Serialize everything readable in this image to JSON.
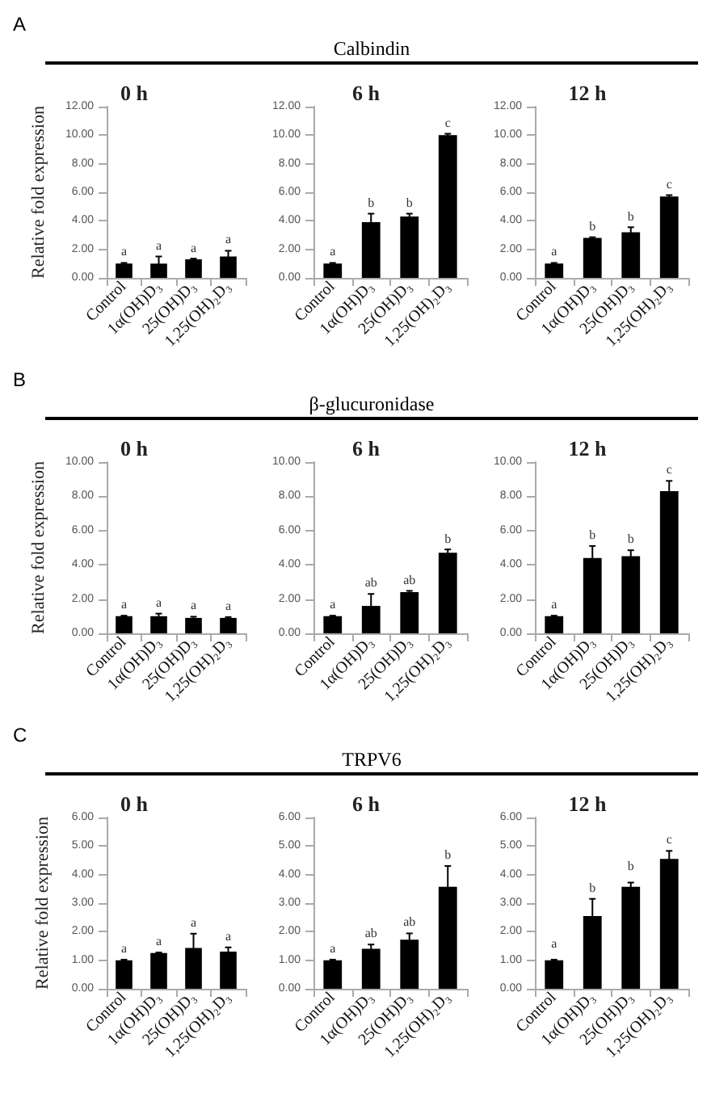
{
  "chart_data": [
    {
      "type": "bar",
      "title": "0 h",
      "ylabel": "Relative fold expression",
      "categories": [
        "Control",
        "1α(OH)D₃",
        "25(OH)D₃",
        "1,25(OH)₂D₃"
      ],
      "values": [
        1.0,
        1.0,
        1.3,
        1.5
      ],
      "errors": [
        0.05,
        0.5,
        0.05,
        0.4
      ],
      "color": "#000000",
      "ylim": [
        0,
        12
      ],
      "yticks": [
        {
          "value": 0,
          "label": "0.00"
        },
        {
          "value": 2,
          "label": "2.00"
        },
        {
          "value": 4,
          "label": "4.00"
        },
        {
          "value": 6,
          "label": "6.00"
        },
        {
          "value": 8,
          "label": "8.00"
        },
        {
          "value": 10,
          "label": "10.00"
        },
        {
          "value": 12,
          "label": "12.00"
        }
      ],
      "annotations": [
        "A",
        "Calbindin",
        {
          "text": "a",
          "x": "Control",
          "y": 1.05
        },
        {
          "text": "a",
          "x": "1α(OH)D₃",
          "y": 1.5
        },
        {
          "text": "a",
          "x": "25(OH)D₃",
          "y": 1.33
        },
        {
          "text": "a",
          "x": "1,25(OH)₂D₃",
          "y": 1.9
        }
      ]
    },
    {
      "type": "bar",
      "title": "6 h",
      "categories": [
        "Control",
        "1α(OH)D₃",
        "25(OH)D₃",
        "1,25(OH)₂D₃"
      ],
      "values": [
        1.0,
        3.9,
        4.3,
        10.0
      ],
      "errors": [
        0.05,
        0.6,
        0.2,
        0.1
      ],
      "color": "#000000",
      "ylim": [
        0,
        12
      ],
      "yticks": [
        {
          "value": 0,
          "label": "0.00"
        },
        {
          "value": 2,
          "label": "2.00"
        },
        {
          "value": 4,
          "label": "4.00"
        },
        {
          "value": 6,
          "label": "6.00"
        },
        {
          "value": 8,
          "label": "8.00"
        },
        {
          "value": 10,
          "label": "10.00"
        },
        {
          "value": 12,
          "label": "12.00"
        }
      ],
      "annotations": [
        {
          "text": "a",
          "x": "Control",
          "y": 1.05
        },
        {
          "text": "b",
          "x": "1α(OH)D₃",
          "y": 4.45
        },
        {
          "text": "b",
          "x": "25(OH)D₃",
          "y": 4.5
        },
        {
          "text": "c",
          "x": "1,25(OH)₂D₃",
          "y": 10.1
        }
      ]
    },
    {
      "type": "bar",
      "title": "12 h",
      "categories": [
        "Control",
        "1α(OH)D₃",
        "25(OH)D₃",
        "1,25(OH)₂D₃"
      ],
      "values": [
        1.0,
        2.8,
        3.2,
        5.7
      ],
      "errors": [
        0.05,
        0.05,
        0.35,
        0.1
      ],
      "color": "#000000",
      "ylim": [
        0,
        12
      ],
      "yticks": [
        {
          "value": 0,
          "label": "0.00"
        },
        {
          "value": 2,
          "label": "2.00"
        },
        {
          "value": 4,
          "label": "4.00"
        },
        {
          "value": 6,
          "label": "6.00"
        },
        {
          "value": 8,
          "label": "8.00"
        },
        {
          "value": 10,
          "label": "10.00"
        },
        {
          "value": 12,
          "label": "12.00"
        }
      ],
      "annotations": [
        {
          "text": "a",
          "x": "Control",
          "y": 1.05
        },
        {
          "text": "b",
          "x": "1α(OH)D₃",
          "y": 2.85
        },
        {
          "text": "b",
          "x": "25(OH)D₃",
          "y": 3.5
        },
        {
          "text": "c",
          "x": "1,25(OH)₂D₃",
          "y": 5.8
        }
      ]
    },
    {
      "type": "bar",
      "title": "0 h",
      "ylabel": "Relative fold expression",
      "categories": [
        "Control",
        "1α(OH)D₃",
        "25(OH)D₃",
        "1,25(OH)₂D₃"
      ],
      "values": [
        1.0,
        1.0,
        0.9,
        0.9
      ],
      "errors": [
        0.03,
        0.15,
        0.07,
        0.05
      ],
      "color": "#000000",
      "ylim": [
        0,
        10
      ],
      "yticks": [
        {
          "value": 0,
          "label": "0.00"
        },
        {
          "value": 2,
          "label": "2.00"
        },
        {
          "value": 4,
          "label": "4.00"
        },
        {
          "value": 6,
          "label": "6.00"
        },
        {
          "value": 8,
          "label": "8.00"
        },
        {
          "value": 10,
          "label": "10.00"
        }
      ],
      "annotations": [
        "B",
        "β-glucuronidase",
        {
          "text": "a",
          "x": "Control",
          "y": 1.03
        },
        {
          "text": "a",
          "x": "1α(OH)D₃",
          "y": 1.11
        },
        {
          "text": "a",
          "x": "25(OH)D₃",
          "y": 0.97
        },
        {
          "text": "a",
          "x": "1,25(OH)₂D₃",
          "y": 0.93
        }
      ]
    },
    {
      "type": "bar",
      "title": "6 h",
      "categories": [
        "Control",
        "1α(OH)D₃",
        "25(OH)D₃",
        "1,25(OH)₂D₃"
      ],
      "values": [
        1.0,
        1.6,
        2.4,
        4.7
      ],
      "errors": [
        0.03,
        0.7,
        0.08,
        0.2
      ],
      "color": "#000000",
      "ylim": [
        0,
        10
      ],
      "yticks": [
        {
          "value": 0,
          "label": "0.00"
        },
        {
          "value": 2,
          "label": "2.00"
        },
        {
          "value": 4,
          "label": "4.00"
        },
        {
          "value": 6,
          "label": "6.00"
        },
        {
          "value": 8,
          "label": "8.00"
        },
        {
          "value": 10,
          "label": "10.00"
        }
      ],
      "annotations": [
        {
          "text": "a",
          "x": "Control",
          "y": 1.03
        },
        {
          "text": "ab",
          "x": "1α(OH)D₃",
          "y": 2.32
        },
        {
          "text": "ab",
          "x": "25(OH)D₃",
          "y": 2.44
        },
        {
          "text": "b",
          "x": "1,25(OH)₂D₃",
          "y": 4.86
        }
      ]
    },
    {
      "type": "bar",
      "title": "12 h",
      "categories": [
        "Control",
        "1α(OH)D₃",
        "25(OH)D₃",
        "1,25(OH)₂D₃"
      ],
      "values": [
        1.0,
        4.4,
        4.5,
        8.3
      ],
      "errors": [
        0.03,
        0.7,
        0.35,
        0.6
      ],
      "color": "#000000",
      "ylim": [
        0,
        10
      ],
      "yticks": [
        {
          "value": 0,
          "label": "0.00"
        },
        {
          "value": 2,
          "label": "2.00"
        },
        {
          "value": 4,
          "label": "4.00"
        },
        {
          "value": 6,
          "label": "6.00"
        },
        {
          "value": 8,
          "label": "8.00"
        },
        {
          "value": 10,
          "label": "10.00"
        }
      ],
      "annotations": [
        {
          "text": "a",
          "x": "Control",
          "y": 1.03
        },
        {
          "text": "b",
          "x": "1α(OH)D₃",
          "y": 5.1
        },
        {
          "text": "b",
          "x": "25(OH)D₃",
          "y": 4.85
        },
        {
          "text": "c",
          "x": "1,25(OH)₂D₃",
          "y": 8.9
        }
      ]
    },
    {
      "type": "bar",
      "title": "0 h",
      "ylabel": "Relative fold expression",
      "categories": [
        "Control",
        "1α(OH)D₃",
        "25(OH)D₃",
        "1,25(OH)₂D₃"
      ],
      "values": [
        1.0,
        1.25,
        1.43,
        1.3
      ],
      "errors": [
        0.02,
        0.02,
        0.5,
        0.15
      ],
      "color": "#000000",
      "ylim": [
        0,
        6
      ],
      "yticks": [
        {
          "value": 0,
          "label": "0.00"
        },
        {
          "value": 1,
          "label": "1.00"
        },
        {
          "value": 2,
          "label": "2.00"
        },
        {
          "value": 3,
          "label": "3.00"
        },
        {
          "value": 4,
          "label": "4.00"
        },
        {
          "value": 5,
          "label": "5.00"
        },
        {
          "value": 6,
          "label": "6.00"
        }
      ],
      "annotations": [
        "C",
        "TRPV6",
        {
          "text": "a",
          "x": "Control",
          "y": 1.02
        },
        {
          "text": "a",
          "x": "1α(OH)D₃",
          "y": 1.27
        },
        {
          "text": "a",
          "x": "25(OH)D₃",
          "y": 1.93
        },
        {
          "text": "a",
          "x": "1,25(OH)₂D₃",
          "y": 1.45
        }
      ]
    },
    {
      "type": "bar",
      "title": "6 h",
      "categories": [
        "Control",
        "1α(OH)D₃",
        "25(OH)D₃",
        "1,25(OH)₂D₃"
      ],
      "values": [
        1.0,
        1.4,
        1.72,
        3.57
      ],
      "errors": [
        0.02,
        0.15,
        0.22,
        0.73
      ],
      "color": "#000000",
      "ylim": [
        0,
        6
      ],
      "yticks": [
        {
          "value": 0,
          "label": "0.00"
        },
        {
          "value": 1,
          "label": "1.00"
        },
        {
          "value": 2,
          "label": "2.00"
        },
        {
          "value": 3,
          "label": "3.00"
        },
        {
          "value": 4,
          "label": "4.00"
        },
        {
          "value": 5,
          "label": "5.00"
        },
        {
          "value": 6,
          "label": "6.00"
        }
      ],
      "annotations": [
        {
          "text": "a",
          "x": "Control",
          "y": 1.02
        },
        {
          "text": "ab",
          "x": "1α(OH)D₃",
          "y": 1.55
        },
        {
          "text": "ab",
          "x": "25(OH)D₃",
          "y": 1.94
        },
        {
          "text": "b",
          "x": "1,25(OH)₂D₃",
          "y": 4.3
        }
      ]
    },
    {
      "type": "bar",
      "title": "12 h",
      "categories": [
        "Control",
        "1α(OH)D₃",
        "25(OH)D₃",
        "1,25(OH)₂D₃"
      ],
      "values": [
        1.0,
        2.55,
        3.57,
        4.55
      ],
      "errors": [
        0.02,
        0.6,
        0.15,
        0.28
      ],
      "color": "#000000",
      "ylim": [
        0,
        6
      ],
      "yticks": [
        {
          "value": 0,
          "label": "0.00"
        },
        {
          "value": 1,
          "label": "1.00"
        },
        {
          "value": 2,
          "label": "2.00"
        },
        {
          "value": 3,
          "label": "3.00"
        },
        {
          "value": 4,
          "label": "4.00"
        },
        {
          "value": 5,
          "label": "5.00"
        },
        {
          "value": 6,
          "label": "6.00"
        }
      ],
      "annotations": [
        {
          "text": "a",
          "x": "Control",
          "y": 1.2
        },
        {
          "text": "b",
          "x": "1α(OH)D₃",
          "y": 3.15
        },
        {
          "text": "b",
          "x": "25(OH)D₃",
          "y": 3.9
        },
        {
          "text": "c",
          "x": "1,25(OH)₂D₃",
          "y": 4.83
        }
      ]
    }
  ]
}
